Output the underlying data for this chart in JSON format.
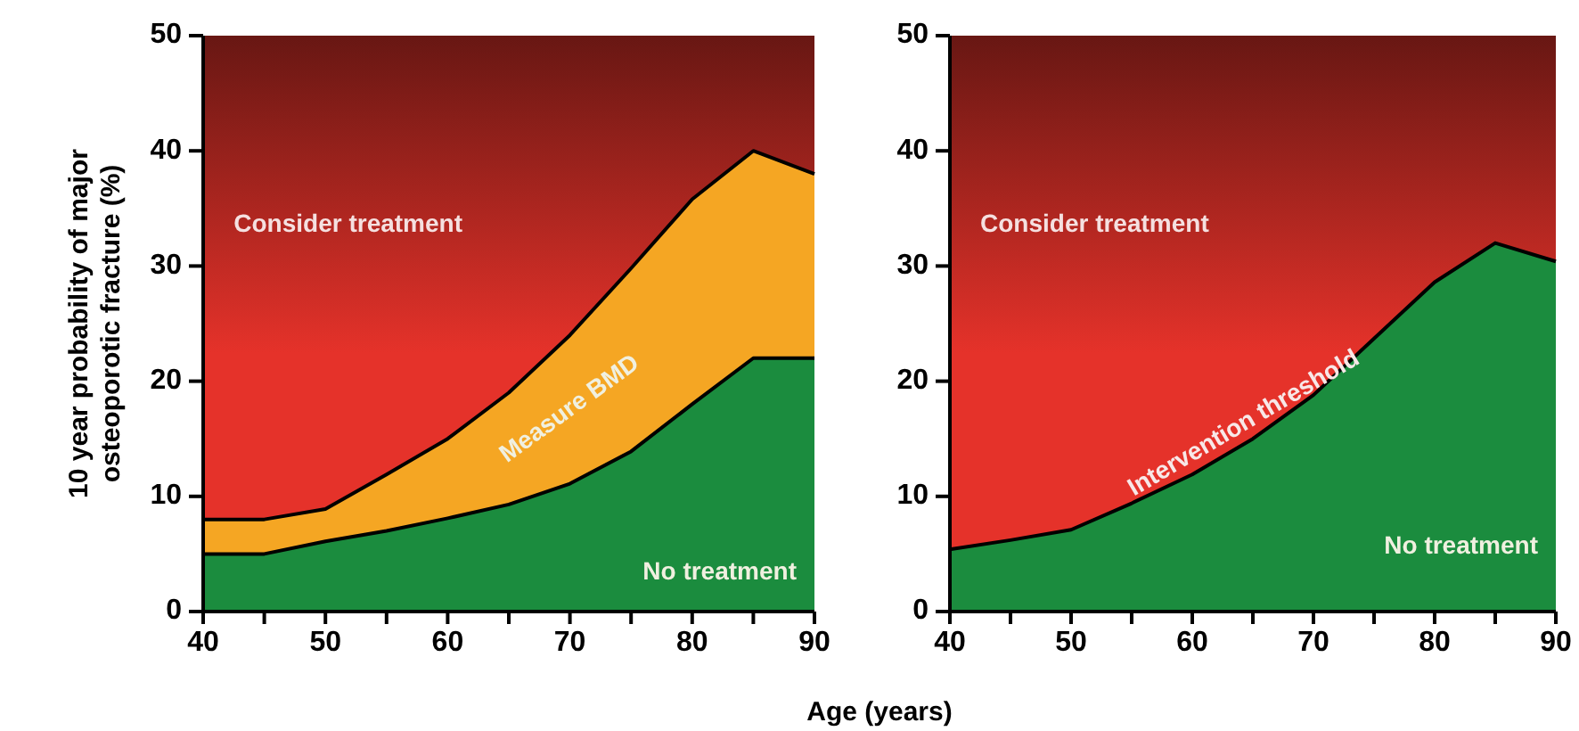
{
  "chart_data": [
    {
      "type": "area",
      "ylabel": "10 year probability of major osteoporotic fracture (%)",
      "xlabel": "Age (years)",
      "x": [
        40,
        45,
        50,
        55,
        60,
        65,
        70,
        75,
        80,
        85,
        90
      ],
      "xlim": [
        40,
        90
      ],
      "xticks": [
        40,
        50,
        60,
        70,
        80,
        90
      ],
      "ylim": [
        0,
        50
      ],
      "yticks": [
        0,
        10,
        20,
        30,
        40,
        50
      ],
      "grid": false,
      "legend": false,
      "bands": [
        {
          "axis": "y",
          "from": 0,
          "to": 50,
          "label": "Consider treatment",
          "color": "#e5322a"
        }
      ],
      "series": [
        {
          "name": "Measure BMD",
          "color": "#f5a623",
          "values": [
            8,
            8,
            8.9,
            11.9,
            15,
            19,
            24,
            29.8,
            35.8,
            40,
            38
          ]
        },
        {
          "name": "No treatment",
          "color": "#1b8c3e",
          "values": [
            5,
            5,
            6.1,
            7,
            8.1,
            9.3,
            11.1,
            13.9,
            18,
            22,
            22
          ]
        }
      ]
    },
    {
      "type": "area",
      "x": [
        40,
        45,
        50,
        55,
        60,
        65,
        70,
        75,
        80,
        85,
        90
      ],
      "xlim": [
        40,
        90
      ],
      "xticks": [
        40,
        50,
        60,
        70,
        80,
        90
      ],
      "ylim": [
        0,
        50
      ],
      "yticks": [
        0,
        10,
        20,
        30,
        40,
        50
      ],
      "grid": false,
      "legend": false,
      "bands": [
        {
          "axis": "y",
          "from": 0,
          "to": 50,
          "label": "Consider treatment",
          "color": "#e5322a"
        }
      ],
      "annotations": [
        {
          "text": "Intervention threshold",
          "x": 65,
          "y": 15
        }
      ],
      "series": [
        {
          "name": "No treatment",
          "color": "#1b8c3e",
          "values": [
            5.4,
            6.2,
            7.1,
            9.4,
            11.9,
            15,
            18.8,
            23.7,
            28.6,
            32,
            30.4
          ]
        }
      ]
    }
  ]
}
